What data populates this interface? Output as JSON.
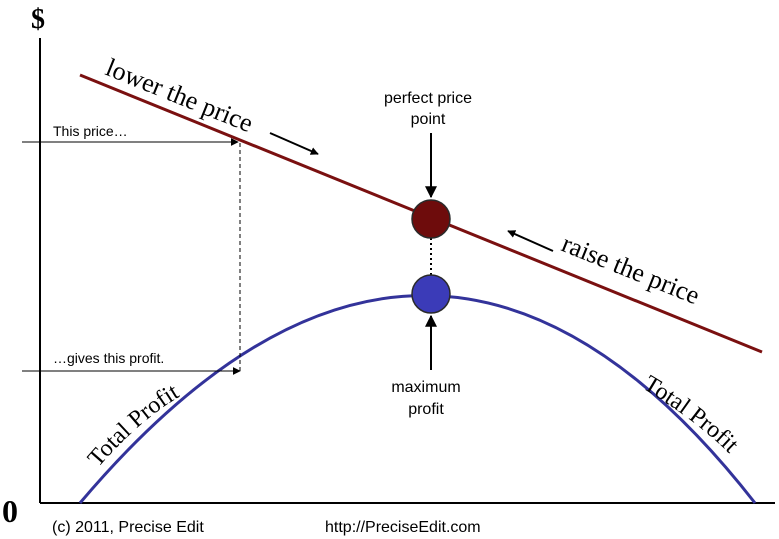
{
  "axes": {
    "y_symbol": "$",
    "origin_label": "0"
  },
  "labels": {
    "lower_price": "lower the price",
    "raise_price": "raise the price",
    "perfect_line1": "perfect price",
    "perfect_line2": "point",
    "maximum_line1": "maximum",
    "maximum_line2": "profit",
    "this_price": "This price…",
    "gives_profit": "…gives this profit.",
    "total_profit_left": "Total Profit",
    "total_profit_right": "Total Profit"
  },
  "footer": {
    "copyright": "(c) 2011, Precise Edit",
    "url": "http://PreciseEdit.com"
  },
  "colors": {
    "price_line": "#7a1010",
    "price_dot": "#6e0c0c",
    "profit_curve": "#33339a",
    "profit_dot": "#3b3bb8",
    "axis": "#000000"
  }
}
